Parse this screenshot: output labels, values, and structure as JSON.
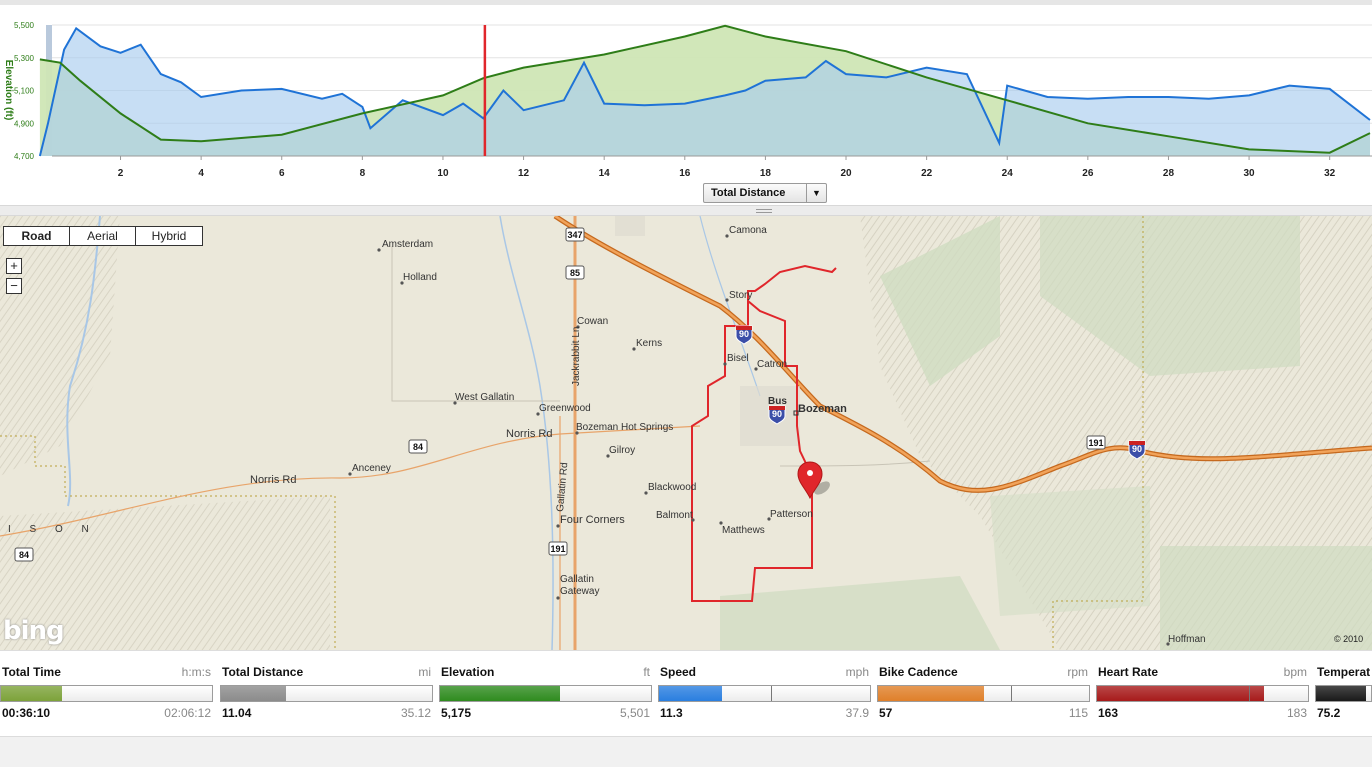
{
  "chart": {
    "y_label": "Elevation (ft)",
    "y_ticks": [
      "5,500",
      "5,300",
      "5,100",
      "4,900",
      "4,700"
    ],
    "x_ticks": [
      "2",
      "4",
      "6",
      "8",
      "10",
      "12",
      "14",
      "16",
      "18",
      "20",
      "22",
      "24",
      "26",
      "28",
      "30",
      "32"
    ],
    "x_axis_select": "Total Distance",
    "cursor_distance": 11.04,
    "colors": {
      "elevation": "#2e7d18",
      "speed": "#1f73d6",
      "cursor": "#e0262b"
    }
  },
  "chart_data": {
    "type": "area",
    "xlabel": "",
    "ylabel": "Elevation (ft)",
    "xlim": [
      0,
      33
    ],
    "ylim": [
      4700,
      5500
    ],
    "x_axis": "Total Distance",
    "series": [
      {
        "color": "#2e7d18",
        "x": [
          0,
          0.5,
          1,
          2,
          3,
          4,
          6,
          8,
          10,
          11,
          12,
          14,
          16,
          17,
          18,
          20,
          22,
          24,
          26,
          28,
          30,
          32,
          33
        ],
        "values": [
          5290,
          5270,
          5160,
          4960,
          4800,
          4790,
          4830,
          4960,
          5070,
          5175,
          5240,
          5320,
          5430,
          5495,
          5430,
          5340,
          5180,
          5040,
          4900,
          4820,
          4740,
          4720,
          4840
        ]
      },
      {
        "color": "#1f73d6",
        "x": [
          0,
          0.2,
          0.6,
          0.9,
          1.5,
          2,
          2.5,
          3,
          3.5,
          4,
          5,
          6,
          7,
          7.5,
          8,
          8.2,
          9,
          10,
          10.5,
          11,
          11.5,
          12,
          13,
          13.5,
          14,
          15,
          16,
          17,
          17.5,
          18,
          19,
          19.5,
          20,
          21,
          22,
          23,
          23.8,
          24,
          25,
          26,
          27,
          28,
          29,
          30,
          31,
          32,
          33
        ],
        "values": [
          4700,
          4900,
          5350,
          5480,
          5370,
          5330,
          5380,
          5200,
          5150,
          5060,
          5100,
          5110,
          5050,
          5080,
          5000,
          4870,
          5040,
          4950,
          5020,
          4930,
          5100,
          4980,
          5040,
          5270,
          5020,
          5010,
          5020,
          5070,
          5100,
          5160,
          5180,
          5280,
          5200,
          5180,
          5240,
          5200,
          4780,
          5130,
          5060,
          5050,
          5060,
          5060,
          5050,
          5070,
          5130,
          5110,
          4920
        ]
      }
    ]
  },
  "map": {
    "type_buttons": [
      "Road",
      "Aerial",
      "Hybrid"
    ],
    "active_type": "Road",
    "zoom_in": "+",
    "zoom_out": "−",
    "logo": "bing",
    "copyright": "© 2010",
    "places": [
      "Amsterdam",
      "Holland",
      "Camona",
      "Story",
      "Cowan",
      "Kerns",
      "Bisel",
      "Catron",
      "Bozeman",
      "West Gallatin",
      "Greenwood",
      "Norris Rd",
      "Bozeman Hot Springs",
      "Gilroy",
      "Anceney",
      "Norris Rd",
      "Blackwood",
      "Balmont",
      "Matthews",
      "Patterson",
      "Four Corners",
      "Gallatin Gateway",
      "Hoffman",
      "Jackrabbit Ln",
      "Gallatin Rd",
      "Bus",
      "I S O N"
    ],
    "shields": [
      "347",
      "85",
      "90",
      "90",
      "84",
      "84",
      "191",
      "191",
      "90"
    ]
  },
  "stats": [
    {
      "name": "Total Time",
      "unit": "h:m:s",
      "current": "00:36:10",
      "max": "02:06:12",
      "fraction": 0.29,
      "color": "#7da33a"
    },
    {
      "name": "Total Distance",
      "unit": "mi",
      "current": "11.04",
      "max": "35.12",
      "fraction": 0.31,
      "color": "#8c8c8c"
    },
    {
      "name": "Elevation",
      "unit": "ft",
      "current": "5,175",
      "max": "5,501",
      "fraction": 0.57,
      "color": "#2f8c1f"
    },
    {
      "name": "Speed",
      "unit": "mph",
      "current": "11.3",
      "max": "37.9",
      "fraction": 0.3,
      "avg": 0.53,
      "color": "#2a7fe0"
    },
    {
      "name": "Bike Cadence",
      "unit": "rpm",
      "current": "57",
      "max": "115",
      "fraction": 0.5,
      "avg": 0.63,
      "color": "#e0802a"
    },
    {
      "name": "Heart Rate",
      "unit": "bpm",
      "current": "163",
      "max": "183",
      "fraction": 0.79,
      "avg": 0.72,
      "color": "#a81b1b"
    },
    {
      "name": "Temperat",
      "unit": "",
      "current": "75.2",
      "max": "",
      "fraction": 0.9,
      "color": "#1a1a1a"
    }
  ]
}
